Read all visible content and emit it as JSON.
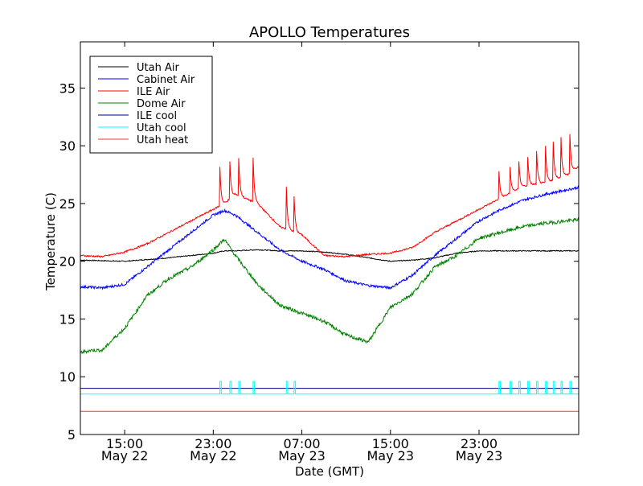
{
  "chart_data": {
    "type": "line",
    "title": "APOLLO Temperatures",
    "xlabel": "Date (GMT)",
    "ylabel": "Temperature (C)",
    "xlim": [
      0,
      45
    ],
    "ylim": [
      5,
      39
    ],
    "x_unit": "hours since 11:00 May 22 (GMT)",
    "x_ticks": [
      {
        "x": 4,
        "time": "15:00",
        "date": "May 22"
      },
      {
        "x": 12,
        "time": "23:00",
        "date": "May 22"
      },
      {
        "x": 20,
        "time": "07:00",
        "date": "May 23"
      },
      {
        "x": 28,
        "time": "15:00",
        "date": "May 23"
      },
      {
        "x": 36,
        "time": "23:00",
        "date": "May 23"
      }
    ],
    "y_ticks": [
      5,
      10,
      15,
      20,
      25,
      30,
      35
    ],
    "legend_position": "upper-left",
    "series": [
      {
        "name": "Utah Air",
        "color": "#000000",
        "x": [
          0,
          4,
          8,
          10,
          12,
          13,
          14,
          16,
          18,
          20,
          22,
          24,
          26,
          28,
          30,
          32,
          33,
          34,
          36,
          38,
          40,
          42,
          44,
          45
        ],
        "y": [
          20.1,
          20.0,
          20.3,
          20.5,
          20.7,
          20.9,
          20.9,
          21.0,
          20.9,
          20.9,
          20.8,
          20.6,
          20.3,
          20.0,
          20.1,
          20.3,
          20.5,
          20.7,
          20.9,
          20.9,
          20.9,
          20.9,
          20.9,
          20.9
        ]
      },
      {
        "name": "Cabinet Air",
        "color": "#0000ff",
        "x": [
          0,
          2,
          4,
          6,
          8,
          10,
          12,
          13,
          14,
          16,
          18,
          20,
          22,
          24,
          26,
          28,
          30,
          32,
          34,
          36,
          38,
          40,
          42,
          44,
          45
        ],
        "y": [
          17.8,
          17.7,
          18.0,
          19.5,
          21.0,
          22.5,
          24.0,
          24.4,
          24.0,
          22.5,
          21.0,
          20.0,
          19.3,
          18.3,
          17.9,
          17.7,
          18.8,
          20.5,
          22.0,
          23.5,
          24.5,
          25.3,
          25.8,
          26.2,
          26.4
        ]
      },
      {
        "name": "ILE Air",
        "color": "#ff0000",
        "x": [
          0,
          2,
          4,
          6,
          8,
          10,
          12,
          13,
          14,
          16,
          18,
          20,
          22,
          24,
          26,
          28,
          30,
          32,
          34,
          36,
          38,
          40,
          42,
          44,
          45
        ],
        "y": [
          20.5,
          20.4,
          20.8,
          21.5,
          22.5,
          23.5,
          24.5,
          25.0,
          25.8,
          25.0,
          23.0,
          22.3,
          20.5,
          20.4,
          20.6,
          20.7,
          21.2,
          22.5,
          23.5,
          24.5,
          25.5,
          26.5,
          26.8,
          27.5,
          28.2
        ]
      },
      {
        "name": "Dome Air",
        "color": "#008000",
        "x": [
          0,
          1,
          2,
          3,
          4,
          6,
          8,
          10,
          12,
          13,
          14,
          16,
          18,
          20,
          22,
          24,
          26,
          27,
          28,
          30,
          32,
          34,
          36,
          38,
          40,
          42,
          44,
          45
        ],
        "y": [
          12.1,
          12.3,
          12.3,
          13.3,
          14.2,
          17.0,
          18.5,
          19.5,
          21.0,
          21.9,
          20.5,
          18.0,
          16.2,
          15.5,
          14.8,
          13.6,
          13.0,
          14.5,
          16.0,
          17.2,
          19.5,
          20.5,
          22.0,
          22.5,
          23.0,
          23.3,
          23.5,
          23.6
        ]
      },
      {
        "name": "ILE cool",
        "color": "#000080",
        "x": [
          0,
          45
        ],
        "y": [
          9.0,
          9.0
        ]
      },
      {
        "name": "Utah cool",
        "color": "#00ffff",
        "x": [
          0,
          45
        ],
        "y": [
          8.5,
          8.5
        ]
      },
      {
        "name": "Utah heat",
        "color": "#ff3333",
        "x": [
          0,
          45
        ],
        "y": [
          7.0,
          7.0
        ]
      }
    ],
    "ile_air_spikes": [
      {
        "x": 12.6,
        "peak": 28.2
      },
      {
        "x": 13.5,
        "peak": 28.6
      },
      {
        "x": 14.3,
        "peak": 28.9
      },
      {
        "x": 15.6,
        "peak": 28.9
      },
      {
        "x": 18.6,
        "peak": 26.5
      },
      {
        "x": 19.3,
        "peak": 25.6
      },
      {
        "x": 37.8,
        "peak": 27.8
      },
      {
        "x": 38.8,
        "peak": 28.2
      },
      {
        "x": 39.6,
        "peak": 28.6
      },
      {
        "x": 40.4,
        "peak": 29.0
      },
      {
        "x": 41.2,
        "peak": 29.5
      },
      {
        "x": 42.0,
        "peak": 30.0
      },
      {
        "x": 42.7,
        "peak": 30.3
      },
      {
        "x": 43.4,
        "peak": 30.7
      },
      {
        "x": 44.2,
        "peak": 31.0
      }
    ],
    "utah_cool_pulses": {
      "x": [
        12.6,
        13.5,
        14.3,
        15.6,
        18.6,
        19.3,
        37.8,
        38.8,
        39.6,
        40.4,
        41.2,
        42.0,
        42.7,
        43.4,
        44.2
      ],
      "peak": 9.6
    }
  }
}
